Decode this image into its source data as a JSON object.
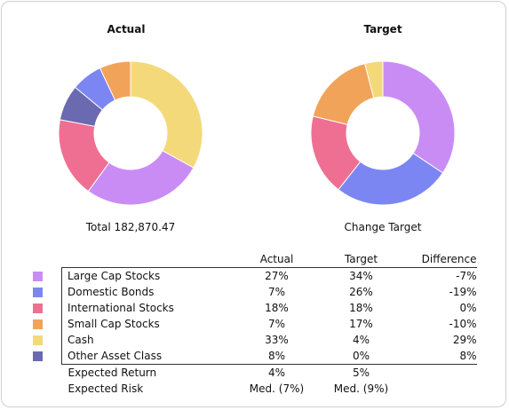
{
  "charts": {
    "actual_title": "Actual",
    "target_title": "Target",
    "total_caption": "Total 182,870.47",
    "change_target_label": "Change Target"
  },
  "table": {
    "headers": {
      "actual": "Actual",
      "target": "Target",
      "difference": "Difference"
    },
    "rows": [
      {
        "name": "Large Cap Stocks",
        "actual": "27%",
        "target": "34%",
        "difference": "-7%",
        "color": "#c98cf4"
      },
      {
        "name": "Domestic Bonds",
        "actual": "7%",
        "target": "26%",
        "difference": "-19%",
        "color": "#7b86f3"
      },
      {
        "name": "International Stocks",
        "actual": "18%",
        "target": "18%",
        "difference": "0%",
        "color": "#ef6f93"
      },
      {
        "name": "Small Cap Stocks",
        "actual": "7%",
        "target": "17%",
        "difference": "-10%",
        "color": "#f2a35a"
      },
      {
        "name": "Cash",
        "actual": "33%",
        "target": "4%",
        "difference": "29%",
        "color": "#f3d97a"
      },
      {
        "name": "Other Asset Class",
        "actual": "8%",
        "target": "0%",
        "difference": "8%",
        "color": "#6b69b0"
      }
    ],
    "summary": [
      {
        "label": "Expected Return",
        "actual": "4%",
        "target": "5%"
      },
      {
        "label": "Expected Risk",
        "actual": "Med. (7%)",
        "target": "Med. (9%)"
      }
    ]
  },
  "chart_data": [
    {
      "type": "pie",
      "categories": [
        "Cash",
        "Large Cap Stocks",
        "International Stocks",
        "Other Asset Class",
        "Domestic Bonds",
        "Small Cap Stocks"
      ],
      "values": [
        33,
        27,
        18,
        8,
        7,
        7
      ],
      "title": "Actual"
    },
    {
      "type": "pie",
      "categories": [
        "Large Cap Stocks",
        "Domestic Bonds",
        "International Stocks",
        "Small Cap Stocks",
        "Cash",
        "Other Asset Class"
      ],
      "values": [
        34,
        26,
        18,
        17,
        4,
        0
      ],
      "title": "Target"
    }
  ]
}
